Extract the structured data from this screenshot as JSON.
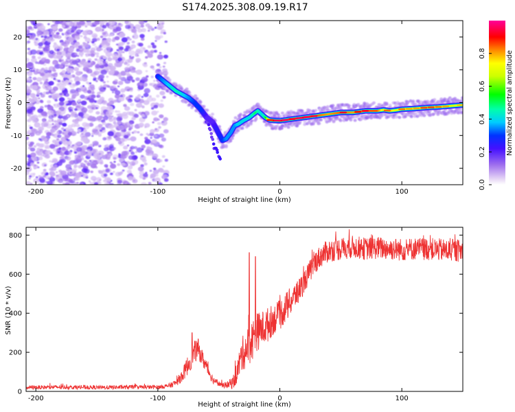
{
  "chart_data": [
    {
      "type": "heatmap",
      "title": "S174.2025.308.09.19.R17",
      "xlabel": "Height of straight line (km)",
      "ylabel": "Frequency (Hz)",
      "xlim": [
        -208,
        150
      ],
      "ylim": [
        -25,
        25
      ],
      "xticks": [
        -200,
        -100,
        0,
        100
      ],
      "xtick_labels": [
        "-200",
        "-100",
        "0",
        "100"
      ],
      "yticks": [
        -20,
        -10,
        0,
        10,
        20
      ],
      "ytick_labels": [
        "-20",
        "-10",
        "0",
        "10",
        "20"
      ],
      "colorbar": {
        "label": "Normalized spectral amplitude",
        "range": [
          0,
          1
        ],
        "ticks": [
          0.0,
          0.2,
          0.4,
          0.6,
          0.8
        ],
        "tick_labels": [
          "0.0",
          "0.2",
          "0.4",
          "0.6",
          "0.8"
        ],
        "colormap": "rainbow (white-violet-blue-cyan-green-yellow-red-magenta)"
      },
      "ridge": {
        "description": "dominant frequency vs height",
        "x": [
          -100,
          -95,
          -90,
          -85,
          -80,
          -75,
          -70,
          -65,
          -60,
          -55,
          -52,
          -50,
          -47,
          -44,
          -42,
          -40,
          -37,
          -34,
          -30,
          -25,
          -20,
          -18,
          -15,
          -12,
          -10,
          -8,
          -5,
          0,
          10,
          20,
          30,
          40,
          50,
          60,
          70,
          80,
          85,
          90,
          95,
          100,
          110,
          120,
          130,
          140,
          150
        ],
        "freq": [
          8,
          6.5,
          5,
          3.5,
          2.5,
          1.5,
          0,
          -2,
          -4.5,
          -6,
          -8,
          -9.5,
          -11.5,
          -11,
          -10,
          -9,
          -7,
          -6.5,
          -5.5,
          -4.5,
          -3,
          -2.5,
          -3.5,
          -4.5,
          -5,
          -5.3,
          -5.4,
          -5.5,
          -5,
          -4.5,
          -4,
          -3.5,
          -3,
          -3,
          -2.5,
          -2.5,
          -2.2,
          -2.5,
          -2.3,
          -2,
          -1.8,
          -1.5,
          -1.3,
          -1,
          -0.7
        ],
        "amplitude": [
          0.3,
          0.35,
          0.4,
          0.45,
          0.4,
          0.35,
          0.3,
          0.3,
          0.2,
          0.2,
          0.25,
          0.25,
          0.3,
          0.35,
          0.35,
          0.35,
          0.35,
          0.4,
          0.4,
          0.4,
          0.5,
          0.45,
          0.4,
          0.5,
          0.7,
          0.8,
          0.9,
          0.9,
          0.85,
          0.9,
          0.85,
          0.8,
          0.85,
          0.8,
          0.85,
          0.85,
          0.7,
          0.8,
          0.7,
          0.75,
          0.7,
          0.8,
          0.75,
          0.7,
          0.7
        ]
      },
      "noise_region": {
        "x_range": [
          -208,
          -93
        ],
        "freq_range": [
          -25,
          25
        ],
        "amplitude_range": [
          0.05,
          0.2
        ]
      },
      "tail": {
        "x": [
          -62,
          -57,
          -54,
          -50,
          -48
        ],
        "freq": [
          -3,
          -9,
          -13,
          -16,
          -17.5
        ]
      }
    },
    {
      "type": "line",
      "xlabel": "Height of straight line (km)",
      "ylabel": "SNR (10 * v/v)",
      "xlim": [
        -208,
        150
      ],
      "ylim": [
        0,
        840
      ],
      "xticks": [
        -200,
        -100,
        0,
        100
      ],
      "xtick_labels": [
        "-200",
        "-100",
        "0",
        "100"
      ],
      "yticks": [
        0,
        200,
        400,
        600,
        800
      ],
      "ytick_labels": [
        "0",
        "200",
        "400",
        "600",
        "800"
      ],
      "color": "#ee3333",
      "series": [
        {
          "name": "SNR",
          "x": [
            -208,
            -180,
            -150,
            -120,
            -100,
            -95,
            -90,
            -85,
            -80,
            -75,
            -72,
            -70,
            -67,
            -65,
            -62,
            -58,
            -55,
            -50,
            -46,
            -42,
            -38,
            -35,
            -32,
            -30,
            -27,
            -25,
            -22,
            -20,
            -15,
            -10,
            -5,
            0,
            5,
            10,
            15,
            20,
            25,
            30,
            35,
            40,
            50,
            60,
            70,
            80,
            90,
            100,
            110,
            120,
            130,
            140,
            150
          ],
          "y": [
            20,
            22,
            20,
            22,
            22,
            25,
            30,
            45,
            80,
            140,
            180,
            200,
            220,
            190,
            150,
            100,
            60,
            40,
            30,
            35,
            50,
            100,
            170,
            200,
            220,
            240,
            270,
            300,
            320,
            340,
            370,
            390,
            430,
            470,
            510,
            560,
            620,
            670,
            700,
            720,
            730,
            740,
            730,
            735,
            730,
            725,
            730,
            730,
            725,
            720,
            720
          ],
          "noise": [
            8,
            8,
            8,
            8,
            8,
            8,
            10,
            14,
            25,
            40,
            45,
            45,
            40,
            35,
            30,
            25,
            15,
            10,
            10,
            15,
            30,
            45,
            60,
            70,
            80,
            80,
            80,
            80,
            70,
            70,
            60,
            60,
            60,
            55,
            50,
            45,
            45,
            45,
            45,
            45,
            45,
            45,
            45,
            45,
            45,
            45,
            45,
            45,
            45,
            45,
            45
          ],
          "peaks": [
            {
              "x": -25,
              "y": 710
            },
            {
              "x": -20,
              "y": 690
            },
            {
              "x": -72,
              "y": 300
            }
          ]
        }
      ]
    }
  ]
}
